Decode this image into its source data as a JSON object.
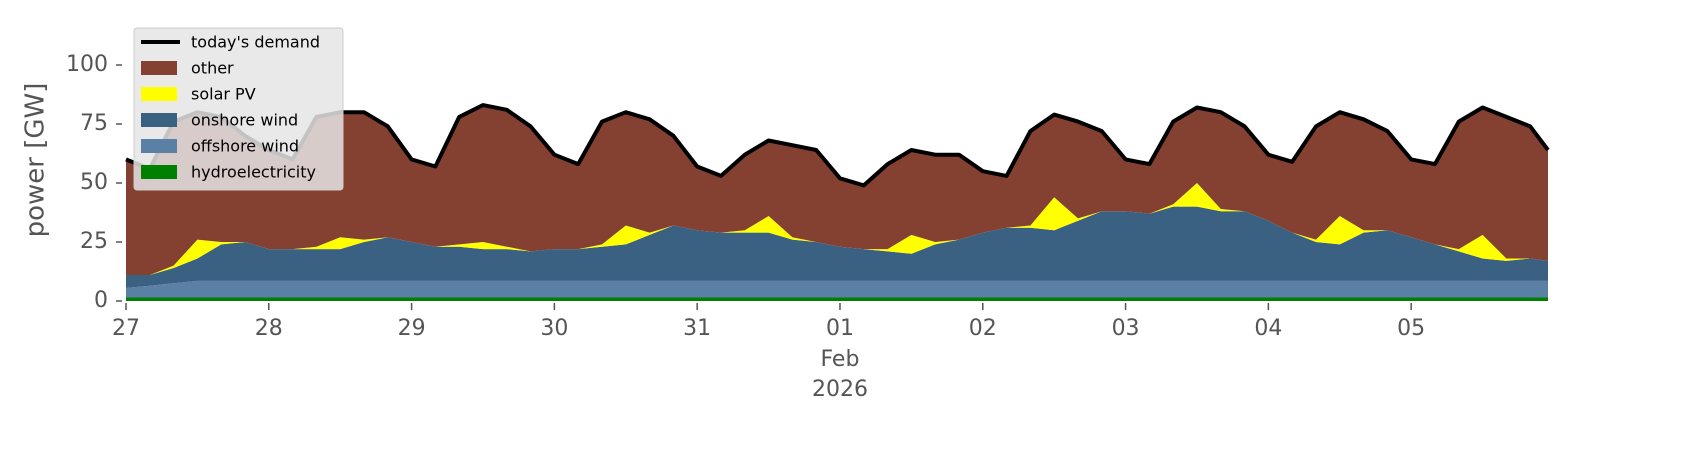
{
  "chart_data": {
    "type": "stacked_area",
    "ylabel": "power [GW]",
    "ylim": [
      0,
      118
    ],
    "yticks": [
      0,
      25,
      50,
      75,
      100
    ],
    "xlim": [
      "2026-01-27T00:00",
      "2026-02-05T23:00"
    ],
    "xticks": [
      {
        "value": "2026-01-27T00:00",
        "label": "27"
      },
      {
        "value": "2026-01-28T00:00",
        "label": "28"
      },
      {
        "value": "2026-01-29T00:00",
        "label": "29"
      },
      {
        "value": "2026-01-30T00:00",
        "label": "30"
      },
      {
        "value": "2026-01-31T00:00",
        "label": "31"
      },
      {
        "value": "2026-02-01T00:00",
        "label": "01"
      },
      {
        "value": "2026-02-02T00:00",
        "label": "02"
      },
      {
        "value": "2026-02-03T00:00",
        "label": "03"
      },
      {
        "value": "2026-02-04T00:00",
        "label": "04"
      },
      {
        "value": "2026-02-05T00:00",
        "label": "05"
      }
    ],
    "x_sublabels": [
      "Feb",
      "2026"
    ],
    "x_sublabel_tick": 5,
    "legend": "upper left",
    "x": [
      "2026-01-27T00:00",
      "2026-01-27T04:00",
      "2026-01-27T08:00",
      "2026-01-27T12:00",
      "2026-01-27T16:00",
      "2026-01-27T20:00",
      "2026-01-28T00:00",
      "2026-01-28T04:00",
      "2026-01-28T08:00",
      "2026-01-28T12:00",
      "2026-01-28T16:00",
      "2026-01-28T20:00",
      "2026-01-29T00:00",
      "2026-01-29T04:00",
      "2026-01-29T08:00",
      "2026-01-29T12:00",
      "2026-01-29T16:00",
      "2026-01-29T20:00",
      "2026-01-30T00:00",
      "2026-01-30T04:00",
      "2026-01-30T08:00",
      "2026-01-30T12:00",
      "2026-01-30T16:00",
      "2026-01-30T20:00",
      "2026-01-31T00:00",
      "2026-01-31T04:00",
      "2026-01-31T08:00",
      "2026-01-31T12:00",
      "2026-01-31T16:00",
      "2026-01-31T20:00",
      "2026-02-01T00:00",
      "2026-02-01T04:00",
      "2026-02-01T08:00",
      "2026-02-01T12:00",
      "2026-02-01T16:00",
      "2026-02-01T20:00",
      "2026-02-02T00:00",
      "2026-02-02T04:00",
      "2026-02-02T08:00",
      "2026-02-02T12:00",
      "2026-02-02T16:00",
      "2026-02-02T20:00",
      "2026-02-03T00:00",
      "2026-02-03T04:00",
      "2026-02-03T08:00",
      "2026-02-03T12:00",
      "2026-02-03T16:00",
      "2026-02-03T20:00",
      "2026-02-04T00:00",
      "2026-02-04T04:00",
      "2026-02-04T08:00",
      "2026-02-04T12:00",
      "2026-02-04T16:00",
      "2026-02-04T20:00",
      "2026-02-05T00:00",
      "2026-02-05T04:00",
      "2026-02-05T08:00",
      "2026-02-05T12:00",
      "2026-02-05T16:00",
      "2026-02-05T20:00",
      "2026-02-05T23:00"
    ],
    "line": {
      "name": "today's demand",
      "color": "#000000",
      "values": [
        60,
        56,
        76,
        80,
        78,
        70,
        64,
        60,
        78,
        80,
        80,
        74,
        60,
        57,
        78,
        83,
        81,
        74,
        62,
        58,
        76,
        80,
        77,
        70,
        57,
        53,
        62,
        68,
        66,
        64,
        52,
        49,
        58,
        64,
        62,
        62,
        55,
        53,
        72,
        79,
        76,
        72,
        60,
        58,
        76,
        82,
        80,
        74,
        62,
        59,
        74,
        80,
        77,
        72,
        60,
        58,
        76,
        82,
        78,
        74,
        64
      ]
    },
    "series": [
      {
        "name": "other",
        "color": "#844131",
        "values": [
          49,
          45,
          61,
          54,
          53,
          45,
          42,
          38,
          55,
          53,
          54,
          47,
          35,
          34,
          54,
          58,
          58,
          53,
          40,
          36,
          52,
          48,
          48,
          38,
          27,
          24,
          32,
          32,
          39,
          39,
          29,
          27,
          36,
          36,
          37,
          36,
          26,
          22,
          40,
          35,
          41,
          34,
          22,
          21,
          35,
          32,
          41,
          36,
          28,
          30,
          48,
          44,
          47,
          42,
          33,
          34,
          54,
          54,
          60,
          56,
          47
        ]
      },
      {
        "name": "solar PV",
        "color": "#ffff00",
        "values": [
          0,
          0,
          1,
          8,
          1,
          0,
          0,
          0,
          1,
          5,
          1,
          0,
          0,
          0,
          1,
          3,
          1,
          0,
          0,
          0,
          1,
          8,
          1,
          0,
          0,
          0,
          1,
          7,
          1,
          0,
          0,
          0,
          1,
          8,
          1,
          0,
          0,
          0,
          1,
          14,
          1,
          0,
          0,
          0,
          1,
          10,
          1,
          0,
          0,
          0,
          1,
          12,
          1,
          0,
          0,
          0,
          1,
          10,
          1,
          0,
          0
        ]
      },
      {
        "name": "onshore wind",
        "color": "#3b6182",
        "values": [
          5.5,
          4.5,
          6.5,
          9.5,
          15.5,
          16.5,
          13.5,
          13.5,
          13.5,
          13.5,
          16.5,
          18.5,
          16.5,
          14.5,
          14.5,
          13.5,
          13.5,
          12.5,
          13.5,
          13.5,
          14.5,
          15.5,
          19.5,
          23.5,
          21.5,
          20.5,
          20.5,
          20.5,
          17.5,
          16.5,
          14.5,
          13.5,
          12.5,
          11.5,
          15.5,
          17.5,
          20.5,
          22.5,
          22.5,
          21.5,
          25.5,
          29.5,
          29.5,
          28.5,
          31.5,
          31.5,
          29.5,
          29.5,
          25.5,
          20.5,
          16.5,
          15.5,
          20.5,
          21.5,
          18.5,
          15.5,
          12.5,
          9.5,
          8.5,
          9.5,
          8.5
        ]
      },
      {
        "name": "offshore wind",
        "color": "#5b80a5",
        "values": [
          4,
          5,
          6,
          7,
          7,
          7,
          7,
          7,
          7,
          7,
          7,
          7,
          7,
          7,
          7,
          7,
          7,
          7,
          7,
          7,
          7,
          7,
          7,
          7,
          7,
          7,
          7,
          7,
          7,
          7,
          7,
          7,
          7,
          7,
          7,
          7,
          7,
          7,
          7,
          7,
          7,
          7,
          7,
          7,
          7,
          7,
          7,
          7,
          7,
          7,
          7,
          7,
          7,
          7,
          7,
          7,
          7,
          7,
          7,
          7,
          7
        ]
      },
      {
        "name": "hydroelectricity",
        "color": "#008000",
        "values": [
          1.5,
          1.5,
          1.5,
          1.5,
          1.5,
          1.5,
          1.5,
          1.5,
          1.5,
          1.5,
          1.5,
          1.5,
          1.5,
          1.5,
          1.5,
          1.5,
          1.5,
          1.5,
          1.5,
          1.5,
          1.5,
          1.5,
          1.5,
          1.5,
          1.5,
          1.5,
          1.5,
          1.5,
          1.5,
          1.5,
          1.5,
          1.5,
          1.5,
          1.5,
          1.5,
          1.5,
          1.5,
          1.5,
          1.5,
          1.5,
          1.5,
          1.5,
          1.5,
          1.5,
          1.5,
          1.5,
          1.5,
          1.5,
          1.5,
          1.5,
          1.5,
          1.5,
          1.5,
          1.5,
          1.5,
          1.5,
          1.5,
          1.5,
          1.5,
          1.5,
          1.5
        ]
      }
    ]
  }
}
